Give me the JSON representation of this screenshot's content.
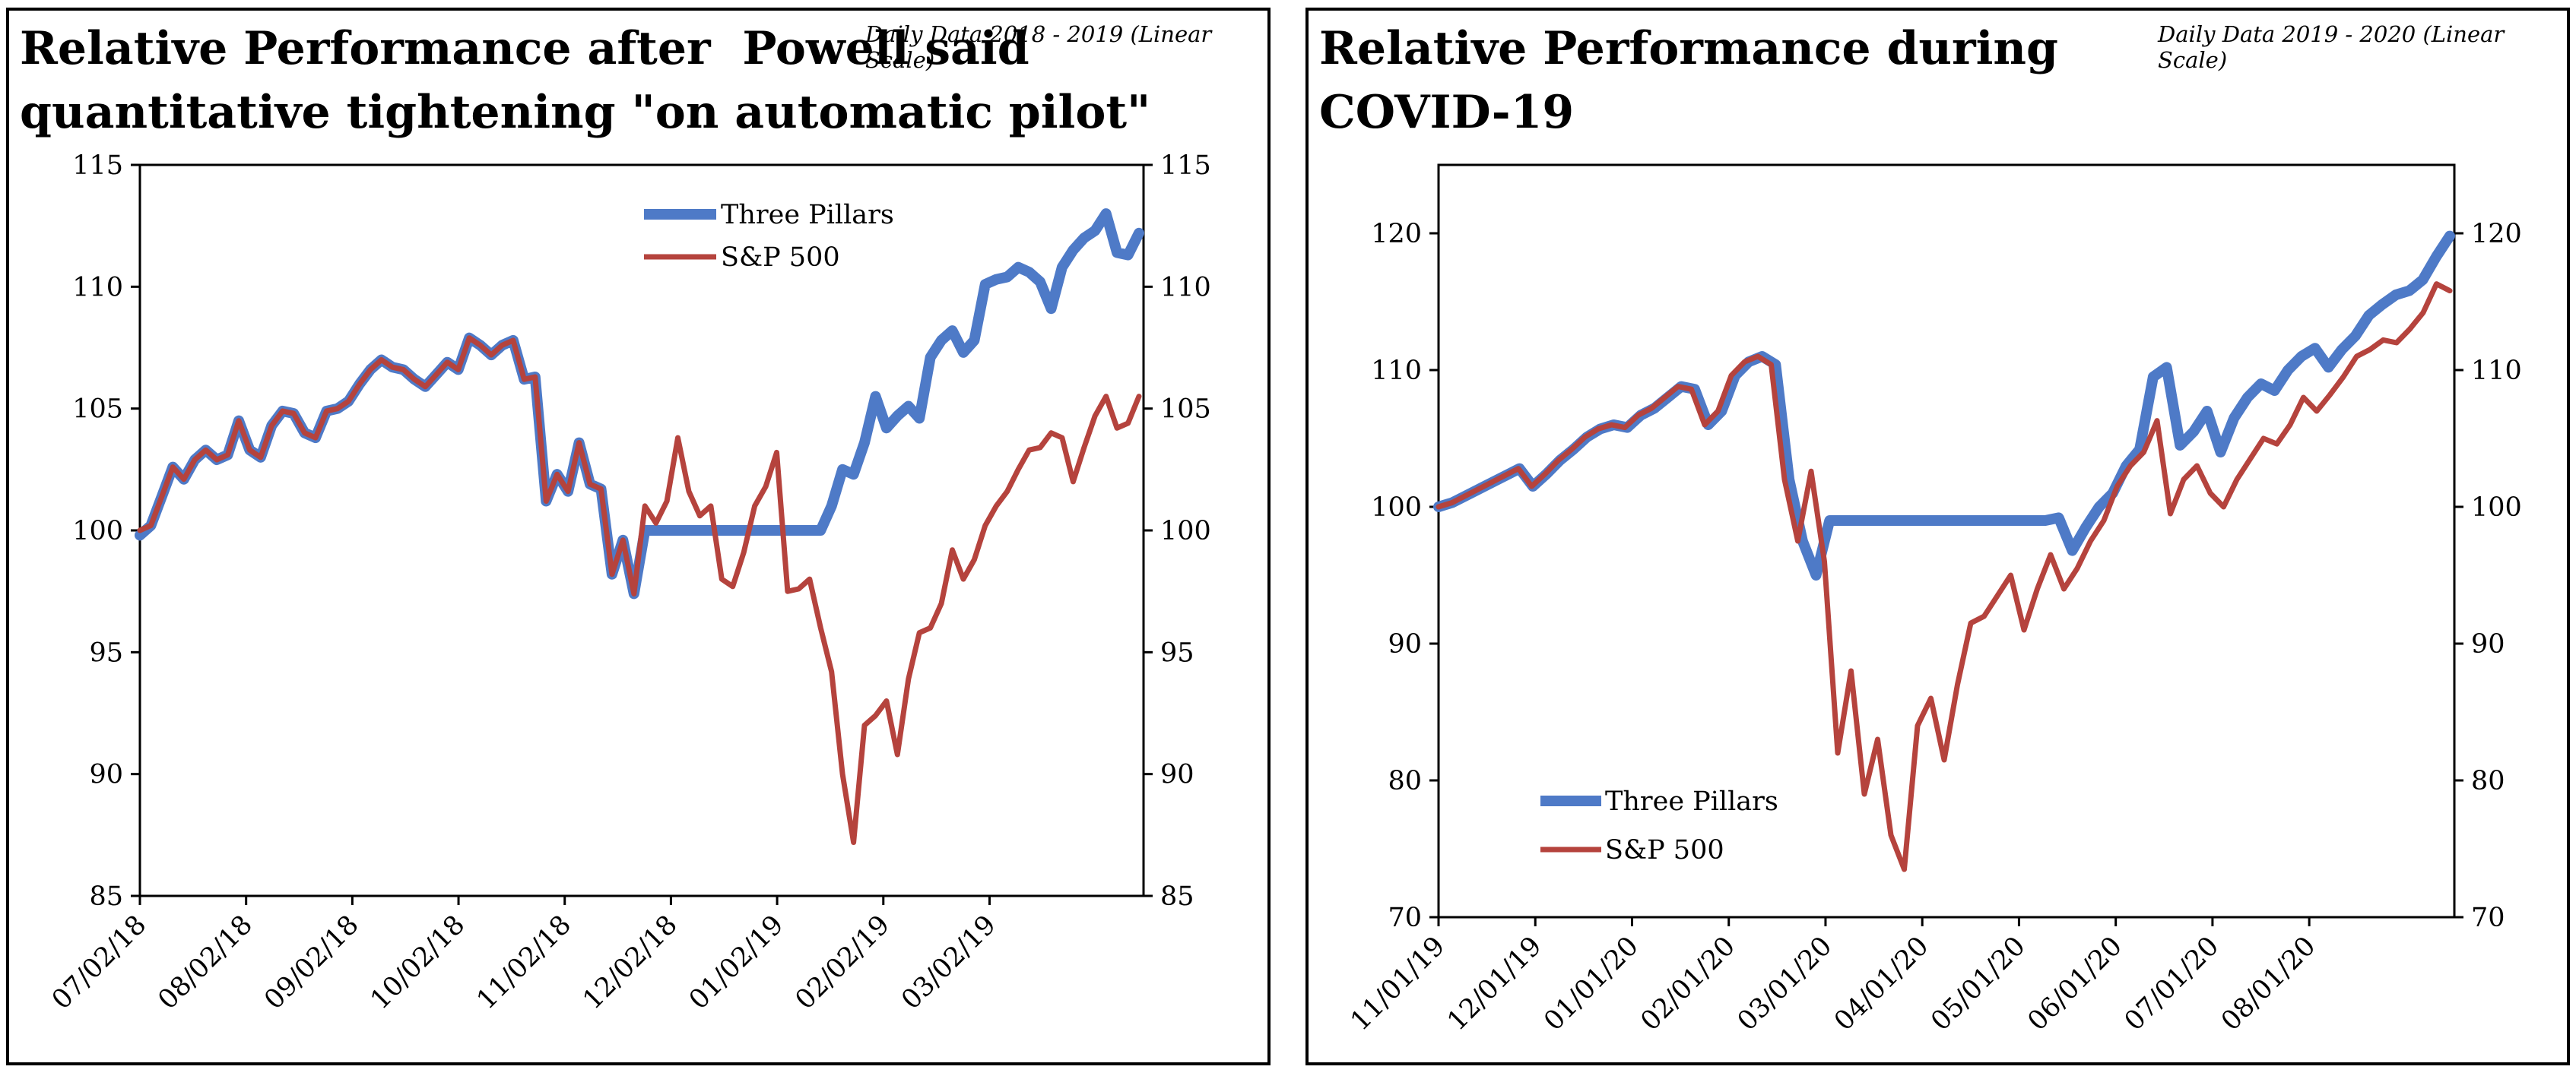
{
  "chart_data": [
    {
      "type": "line",
      "title_lines": [
        "Relative Performance after  Powell said",
        "quantitative tightening \"on automatic pilot\""
      ],
      "subtitle": "Daily Data 2018 - 2019 (Linear Scale)",
      "xlabel": "",
      "ylabel": "",
      "x_tick_labels": [
        "07/02/18",
        "08/02/18",
        "09/02/18",
        "10/02/18",
        "11/02/18",
        "12/02/18",
        "01/02/19",
        "02/02/19",
        "03/02/19"
      ],
      "ylim": [
        85,
        115
      ],
      "y_ticks": [
        85,
        90,
        95,
        100,
        105,
        110,
        115
      ],
      "grid": false,
      "legend_placement": "top-center",
      "series": [
        {
          "name": "Three Pillars",
          "color": "#4e7ac7",
          "values": [
            99.8,
            100.2,
            101.4,
            102.6,
            102.1,
            102.9,
            103.3,
            102.9,
            103.1,
            104.5,
            103.3,
            103.0,
            104.3,
            104.9,
            104.8,
            104.0,
            103.8,
            104.9,
            105.0,
            105.3,
            106.0,
            106.6,
            107.0,
            106.7,
            106.6,
            106.2,
            105.9,
            106.4,
            106.9,
            106.6,
            107.9,
            107.6,
            107.2,
            107.6,
            107.8,
            106.2,
            106.3,
            101.2,
            102.3,
            101.6,
            103.6,
            101.9,
            101.7,
            98.2,
            99.6,
            97.4,
            100.0,
            100.0,
            100.0,
            100.0,
            100.0,
            100.0,
            100.0,
            100.0,
            100.0,
            100.0,
            100.0,
            100.0,
            100.0,
            100.0,
            100.0,
            100.0,
            100.0,
            101.0,
            102.5,
            102.3,
            103.6,
            105.5,
            104.2,
            104.7,
            105.1,
            104.6,
            107.1,
            107.8,
            108.2,
            107.3,
            107.8,
            110.1,
            110.3,
            110.4,
            110.8,
            110.6,
            110.2,
            109.1,
            110.8,
            111.5,
            112.0,
            112.3,
            113.0,
            111.4,
            111.3,
            112.2
          ],
          "markers": false
        },
        {
          "name": "S&P 500",
          "color": "#b5433d",
          "values": [
            100.0,
            100.2,
            101.4,
            102.6,
            102.1,
            102.9,
            103.3,
            102.9,
            103.1,
            104.5,
            103.3,
            103.0,
            104.3,
            104.9,
            104.8,
            104.0,
            103.8,
            104.9,
            105.0,
            105.3,
            106.0,
            106.6,
            107.0,
            106.7,
            106.6,
            106.2,
            105.9,
            106.4,
            106.9,
            106.6,
            107.9,
            107.6,
            107.2,
            107.6,
            107.8,
            106.2,
            106.3,
            101.2,
            102.3,
            101.6,
            103.6,
            101.9,
            101.7,
            98.2,
            99.6,
            97.4,
            101.0,
            100.3,
            101.2,
            103.8,
            101.6,
            100.6,
            101.0,
            98.0,
            97.7,
            99.1,
            101.0,
            101.8,
            103.2,
            97.5,
            97.6,
            98.0,
            96.0,
            94.2,
            90.0,
            87.2,
            92.0,
            92.4,
            93.0,
            90.8,
            93.9,
            95.8,
            96.0,
            97.0,
            99.2,
            98.0,
            98.8,
            100.2,
            101.0,
            101.6,
            102.5,
            103.3,
            103.4,
            104.0,
            103.8,
            102.0,
            103.4,
            104.7,
            105.5,
            104.2,
            104.4,
            105.5
          ],
          "markers": false
        }
      ]
    },
    {
      "type": "line",
      "title_lines": [
        "Relative Performance during",
        "COVID-19"
      ],
      "subtitle": "Daily Data 2019 - 2020 (Linear Scale)",
      "xlabel": "",
      "ylabel": "",
      "x_tick_labels": [
        "11/01/19",
        "12/01/19",
        "01/01/20",
        "02/01/20",
        "03/01/20",
        "04/01/20",
        "05/01/20",
        "06/01/20",
        "07/01/20",
        "08/01/20"
      ],
      "ylim": [
        70,
        125
      ],
      "y_ticks": [
        70,
        80,
        90,
        100,
        110,
        120
      ],
      "grid": false,
      "legend_placement": "bottom-left",
      "series": [
        {
          "name": "Three Pillars",
          "color": "#4e7ac7",
          "values": [
            100.0,
            100.3,
            100.8,
            101.3,
            101.8,
            102.3,
            102.8,
            101.5,
            102.4,
            103.4,
            104.2,
            105.1,
            105.7,
            106.0,
            105.8,
            106.7,
            107.2,
            108.0,
            108.8,
            108.6,
            106.0,
            107.0,
            109.6,
            110.6,
            111.0,
            110.4,
            102.0,
            97.5,
            95.0,
            99.0,
            99.0,
            99.0,
            99.0,
            99.0,
            99.0,
            99.0,
            99.0,
            99.0,
            99.0,
            99.0,
            99.0,
            99.0,
            99.0,
            99.0,
            99.0,
            99.0,
            99.2,
            96.8,
            98.5,
            100.0,
            101.0,
            103.0,
            104.2,
            109.5,
            110.2,
            104.5,
            105.5,
            107.0,
            104.0,
            106.5,
            108.0,
            109.0,
            108.5,
            110.0,
            111.0,
            111.6,
            110.2,
            111.5,
            112.5,
            114.0,
            114.8,
            115.5,
            115.8,
            116.6,
            118.3,
            119.8
          ],
          "markers": false
        },
        {
          "name": "S&P 500",
          "color": "#b5433d",
          "values": [
            100.0,
            100.3,
            100.8,
            101.3,
            101.8,
            102.3,
            102.8,
            101.5,
            102.4,
            103.4,
            104.2,
            105.1,
            105.7,
            106.0,
            105.8,
            106.7,
            107.2,
            108.0,
            108.8,
            108.6,
            106.0,
            107.0,
            109.6,
            110.6,
            111.0,
            110.4,
            102.0,
            97.5,
            102.6,
            96.0,
            82.0,
            88.0,
            79.0,
            83.0,
            76.0,
            73.5,
            84.0,
            86.0,
            81.5,
            87.0,
            91.5,
            92.0,
            93.5,
            95.0,
            91.0,
            94.0,
            96.5,
            94.0,
            95.5,
            97.5,
            99.0,
            101.5,
            103.0,
            104.0,
            106.3,
            99.5,
            102.0,
            103.0,
            101.0,
            100.0,
            102.0,
            103.5,
            105.0,
            104.6,
            106.0,
            108.0,
            107.0,
            108.2,
            109.5,
            111.0,
            111.5,
            112.2,
            112.0,
            113.0,
            114.2,
            116.3,
            115.8
          ],
          "markers": false
        }
      ]
    }
  ]
}
